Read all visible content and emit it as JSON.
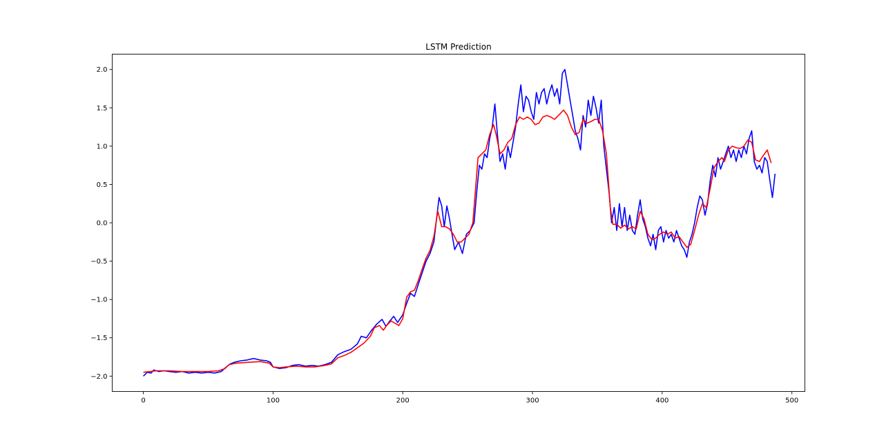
{
  "chart_data": {
    "type": "line",
    "title": "LSTM Prediction",
    "xlabel": "",
    "ylabel": "",
    "xlim": [
      -24,
      510
    ],
    "ylim": [
      -2.2,
      2.2
    ],
    "xticks": [
      0,
      100,
      200,
      300,
      400,
      500
    ],
    "yticks": [
      -2.0,
      -1.5,
      -1.0,
      -0.5,
      0.0,
      0.5,
      1.0,
      1.5,
      2.0
    ],
    "ytick_labels": [
      "−2.0",
      "−1.5",
      "−1.0",
      "−0.5",
      "0.0",
      "0.5",
      "1.0",
      "1.5",
      "2.0"
    ],
    "grid": false,
    "series": [
      {
        "color": "#0000ff",
        "points": [
          [
            0,
            -2.0
          ],
          [
            3,
            -1.95
          ],
          [
            6,
            -1.96
          ],
          [
            8,
            -1.92
          ],
          [
            12,
            -1.94
          ],
          [
            16,
            -1.93
          ],
          [
            20,
            -1.94
          ],
          [
            25,
            -1.95
          ],
          [
            30,
            -1.94
          ],
          [
            35,
            -1.96
          ],
          [
            40,
            -1.95
          ],
          [
            45,
            -1.96
          ],
          [
            50,
            -1.95
          ],
          [
            55,
            -1.96
          ],
          [
            60,
            -1.94
          ],
          [
            64,
            -1.88
          ],
          [
            67,
            -1.84
          ],
          [
            70,
            -1.82
          ],
          [
            75,
            -1.8
          ],
          [
            80,
            -1.79
          ],
          [
            85,
            -1.77
          ],
          [
            90,
            -1.79
          ],
          [
            95,
            -1.8
          ],
          [
            98,
            -1.82
          ],
          [
            100,
            -1.88
          ],
          [
            105,
            -1.9
          ],
          [
            110,
            -1.89
          ],
          [
            115,
            -1.86
          ],
          [
            120,
            -1.85
          ],
          [
            125,
            -1.87
          ],
          [
            130,
            -1.86
          ],
          [
            135,
            -1.87
          ],
          [
            140,
            -1.85
          ],
          [
            145,
            -1.82
          ],
          [
            150,
            -1.72
          ],
          [
            155,
            -1.68
          ],
          [
            160,
            -1.65
          ],
          [
            165,
            -1.58
          ],
          [
            168,
            -1.48
          ],
          [
            172,
            -1.5
          ],
          [
            176,
            -1.4
          ],
          [
            180,
            -1.32
          ],
          [
            184,
            -1.26
          ],
          [
            187,
            -1.35
          ],
          [
            190,
            -1.28
          ],
          [
            193,
            -1.22
          ],
          [
            196,
            -1.3
          ],
          [
            200,
            -1.2
          ],
          [
            203,
            -1.05
          ],
          [
            206,
            -0.92
          ],
          [
            209,
            -0.96
          ],
          [
            212,
            -0.8
          ],
          [
            215,
            -0.65
          ],
          [
            218,
            -0.5
          ],
          [
            221,
            -0.4
          ],
          [
            224,
            -0.25
          ],
          [
            226,
            0.05
          ],
          [
            228,
            0.33
          ],
          [
            230,
            0.22
          ],
          [
            232,
            -0.05
          ],
          [
            234,
            0.22
          ],
          [
            236,
            0.05
          ],
          [
            238,
            -0.15
          ],
          [
            240,
            -0.35
          ],
          [
            243,
            -0.25
          ],
          [
            246,
            -0.4
          ],
          [
            249,
            -0.15
          ],
          [
            252,
            -0.1
          ],
          [
            255,
            0.0
          ],
          [
            257,
            0.4
          ],
          [
            259,
            0.75
          ],
          [
            261,
            0.7
          ],
          [
            263,
            0.9
          ],
          [
            265,
            0.85
          ],
          [
            267,
            1.1
          ],
          [
            269,
            1.25
          ],
          [
            271,
            1.55
          ],
          [
            273,
            1.15
          ],
          [
            275,
            0.8
          ],
          [
            277,
            0.9
          ],
          [
            279,
            0.7
          ],
          [
            281,
            1.0
          ],
          [
            283,
            0.85
          ],
          [
            285,
            1.05
          ],
          [
            287,
            1.25
          ],
          [
            289,
            1.55
          ],
          [
            291,
            1.8
          ],
          [
            293,
            1.45
          ],
          [
            295,
            1.65
          ],
          [
            297,
            1.6
          ],
          [
            299,
            1.45
          ],
          [
            301,
            1.35
          ],
          [
            303,
            1.7
          ],
          [
            305,
            1.55
          ],
          [
            307,
            1.7
          ],
          [
            309,
            1.75
          ],
          [
            311,
            1.55
          ],
          [
            313,
            1.7
          ],
          [
            315,
            1.8
          ],
          [
            317,
            1.65
          ],
          [
            319,
            1.75
          ],
          [
            321,
            1.55
          ],
          [
            323,
            1.95
          ],
          [
            325,
            2.0
          ],
          [
            327,
            1.8
          ],
          [
            329,
            1.6
          ],
          [
            331,
            1.4
          ],
          [
            333,
            1.2
          ],
          [
            335,
            1.1
          ],
          [
            337,
            0.95
          ],
          [
            339,
            1.4
          ],
          [
            341,
            1.25
          ],
          [
            343,
            1.6
          ],
          [
            345,
            1.4
          ],
          [
            347,
            1.65
          ],
          [
            349,
            1.5
          ],
          [
            351,
            1.3
          ],
          [
            353,
            1.6
          ],
          [
            355,
            1.0
          ],
          [
            357,
            0.7
          ],
          [
            359,
            0.4
          ],
          [
            361,
            0.0
          ],
          [
            363,
            0.2
          ],
          [
            365,
            -0.1
          ],
          [
            367,
            0.25
          ],
          [
            369,
            -0.05
          ],
          [
            371,
            0.2
          ],
          [
            373,
            -0.1
          ],
          [
            375,
            0.1
          ],
          [
            377,
            -0.1
          ],
          [
            379,
            -0.15
          ],
          [
            381,
            0.1
          ],
          [
            383,
            0.3
          ],
          [
            385,
            0.05
          ],
          [
            387,
            -0.05
          ],
          [
            389,
            -0.2
          ],
          [
            391,
            -0.3
          ],
          [
            393,
            -0.15
          ],
          [
            395,
            -0.35
          ],
          [
            397,
            -0.1
          ],
          [
            399,
            -0.05
          ],
          [
            401,
            -0.25
          ],
          [
            403,
            -0.1
          ],
          [
            405,
            -0.2
          ],
          [
            407,
            -0.15
          ],
          [
            409,
            -0.25
          ],
          [
            411,
            -0.1
          ],
          [
            413,
            -0.2
          ],
          [
            415,
            -0.3
          ],
          [
            417,
            -0.35
          ],
          [
            419,
            -0.45
          ],
          [
            421,
            -0.25
          ],
          [
            423,
            -0.15
          ],
          [
            425,
            0.0
          ],
          [
            427,
            0.2
          ],
          [
            429,
            0.35
          ],
          [
            431,
            0.3
          ],
          [
            433,
            0.1
          ],
          [
            435,
            0.25
          ],
          [
            437,
            0.55
          ],
          [
            439,
            0.75
          ],
          [
            441,
            0.6
          ],
          [
            443,
            0.85
          ],
          [
            445,
            0.7
          ],
          [
            447,
            0.8
          ],
          [
            449,
            0.9
          ],
          [
            451,
            1.0
          ],
          [
            453,
            0.85
          ],
          [
            455,
            0.95
          ],
          [
            457,
            0.8
          ],
          [
            459,
            0.95
          ],
          [
            461,
            0.85
          ],
          [
            463,
            1.0
          ],
          [
            465,
            0.9
          ],
          [
            467,
            1.1
          ],
          [
            469,
            1.2
          ],
          [
            471,
            0.8
          ],
          [
            473,
            0.7
          ],
          [
            475,
            0.75
          ],
          [
            477,
            0.65
          ],
          [
            479,
            0.85
          ],
          [
            481,
            0.8
          ],
          [
            483,
            0.55
          ],
          [
            485,
            0.33
          ],
          [
            487,
            0.64
          ]
        ]
      },
      {
        "color": "#ff0000",
        "points": [
          [
            0,
            -1.95
          ],
          [
            10,
            -1.93
          ],
          [
            20,
            -1.93
          ],
          [
            30,
            -1.94
          ],
          [
            40,
            -1.94
          ],
          [
            50,
            -1.94
          ],
          [
            58,
            -1.93
          ],
          [
            63,
            -1.9
          ],
          [
            66,
            -1.85
          ],
          [
            72,
            -1.83
          ],
          [
            80,
            -1.82
          ],
          [
            90,
            -1.81
          ],
          [
            97,
            -1.83
          ],
          [
            100,
            -1.88
          ],
          [
            105,
            -1.89
          ],
          [
            110,
            -1.88
          ],
          [
            118,
            -1.87
          ],
          [
            125,
            -1.88
          ],
          [
            132,
            -1.88
          ],
          [
            140,
            -1.86
          ],
          [
            145,
            -1.84
          ],
          [
            150,
            -1.76
          ],
          [
            155,
            -1.73
          ],
          [
            160,
            -1.69
          ],
          [
            165,
            -1.63
          ],
          [
            170,
            -1.57
          ],
          [
            175,
            -1.48
          ],
          [
            178,
            -1.37
          ],
          [
            182,
            -1.34
          ],
          [
            185,
            -1.4
          ],
          [
            188,
            -1.33
          ],
          [
            191,
            -1.28
          ],
          [
            194,
            -1.31
          ],
          [
            197,
            -1.34
          ],
          [
            200,
            -1.25
          ],
          [
            203,
            -0.97
          ],
          [
            206,
            -0.9
          ],
          [
            209,
            -0.88
          ],
          [
            212,
            -0.75
          ],
          [
            215,
            -0.6
          ],
          [
            218,
            -0.46
          ],
          [
            221,
            -0.36
          ],
          [
            224,
            -0.18
          ],
          [
            227,
            0.15
          ],
          [
            230,
            -0.05
          ],
          [
            233,
            -0.05
          ],
          [
            236,
            -0.08
          ],
          [
            239,
            -0.15
          ],
          [
            242,
            -0.25
          ],
          [
            245,
            -0.25
          ],
          [
            248,
            -0.2
          ],
          [
            251,
            -0.15
          ],
          [
            254,
            0.0
          ],
          [
            258,
            0.85
          ],
          [
            261,
            0.9
          ],
          [
            264,
            0.95
          ],
          [
            267,
            1.15
          ],
          [
            270,
            1.28
          ],
          [
            272,
            1.15
          ],
          [
            275,
            0.9
          ],
          [
            278,
            0.95
          ],
          [
            281,
            1.05
          ],
          [
            284,
            1.1
          ],
          [
            287,
            1.28
          ],
          [
            290,
            1.38
          ],
          [
            293,
            1.35
          ],
          [
            296,
            1.38
          ],
          [
            299,
            1.35
          ],
          [
            302,
            1.28
          ],
          [
            305,
            1.3
          ],
          [
            308,
            1.38
          ],
          [
            311,
            1.4
          ],
          [
            314,
            1.38
          ],
          [
            317,
            1.35
          ],
          [
            320,
            1.4
          ],
          [
            324,
            1.47
          ],
          [
            327,
            1.4
          ],
          [
            330,
            1.25
          ],
          [
            333,
            1.15
          ],
          [
            336,
            1.18
          ],
          [
            339,
            1.35
          ],
          [
            342,
            1.3
          ],
          [
            345,
            1.32
          ],
          [
            348,
            1.35
          ],
          [
            351,
            1.35
          ],
          [
            354,
            1.2
          ],
          [
            357,
            0.9
          ],
          [
            360,
            0.2
          ],
          [
            362,
            -0.02
          ],
          [
            365,
            -0.02
          ],
          [
            368,
            -0.07
          ],
          [
            371,
            -0.03
          ],
          [
            374,
            -0.08
          ],
          [
            377,
            -0.05
          ],
          [
            380,
            -0.08
          ],
          [
            383,
            0.15
          ],
          [
            386,
            0.05
          ],
          [
            389,
            -0.15
          ],
          [
            392,
            -0.22
          ],
          [
            395,
            -0.2
          ],
          [
            398,
            -0.15
          ],
          [
            401,
            -0.12
          ],
          [
            404,
            -0.15
          ],
          [
            407,
            -0.12
          ],
          [
            410,
            -0.2
          ],
          [
            413,
            -0.18
          ],
          [
            416,
            -0.25
          ],
          [
            419,
            -0.32
          ],
          [
            422,
            -0.28
          ],
          [
            425,
            -0.1
          ],
          [
            428,
            0.1
          ],
          [
            431,
            0.25
          ],
          [
            434,
            0.2
          ],
          [
            437,
            0.45
          ],
          [
            440,
            0.72
          ],
          [
            443,
            0.8
          ],
          [
            446,
            0.85
          ],
          [
            448,
            0.8
          ],
          [
            451,
            0.95
          ],
          [
            454,
            1.0
          ],
          [
            457,
            0.98
          ],
          [
            460,
            0.97
          ],
          [
            463,
            1.0
          ],
          [
            466,
            1.08
          ],
          [
            469,
            1.05
          ],
          [
            472,
            0.82
          ],
          [
            475,
            0.8
          ],
          [
            478,
            0.88
          ],
          [
            481,
            0.95
          ],
          [
            484,
            0.78
          ]
        ]
      }
    ]
  }
}
